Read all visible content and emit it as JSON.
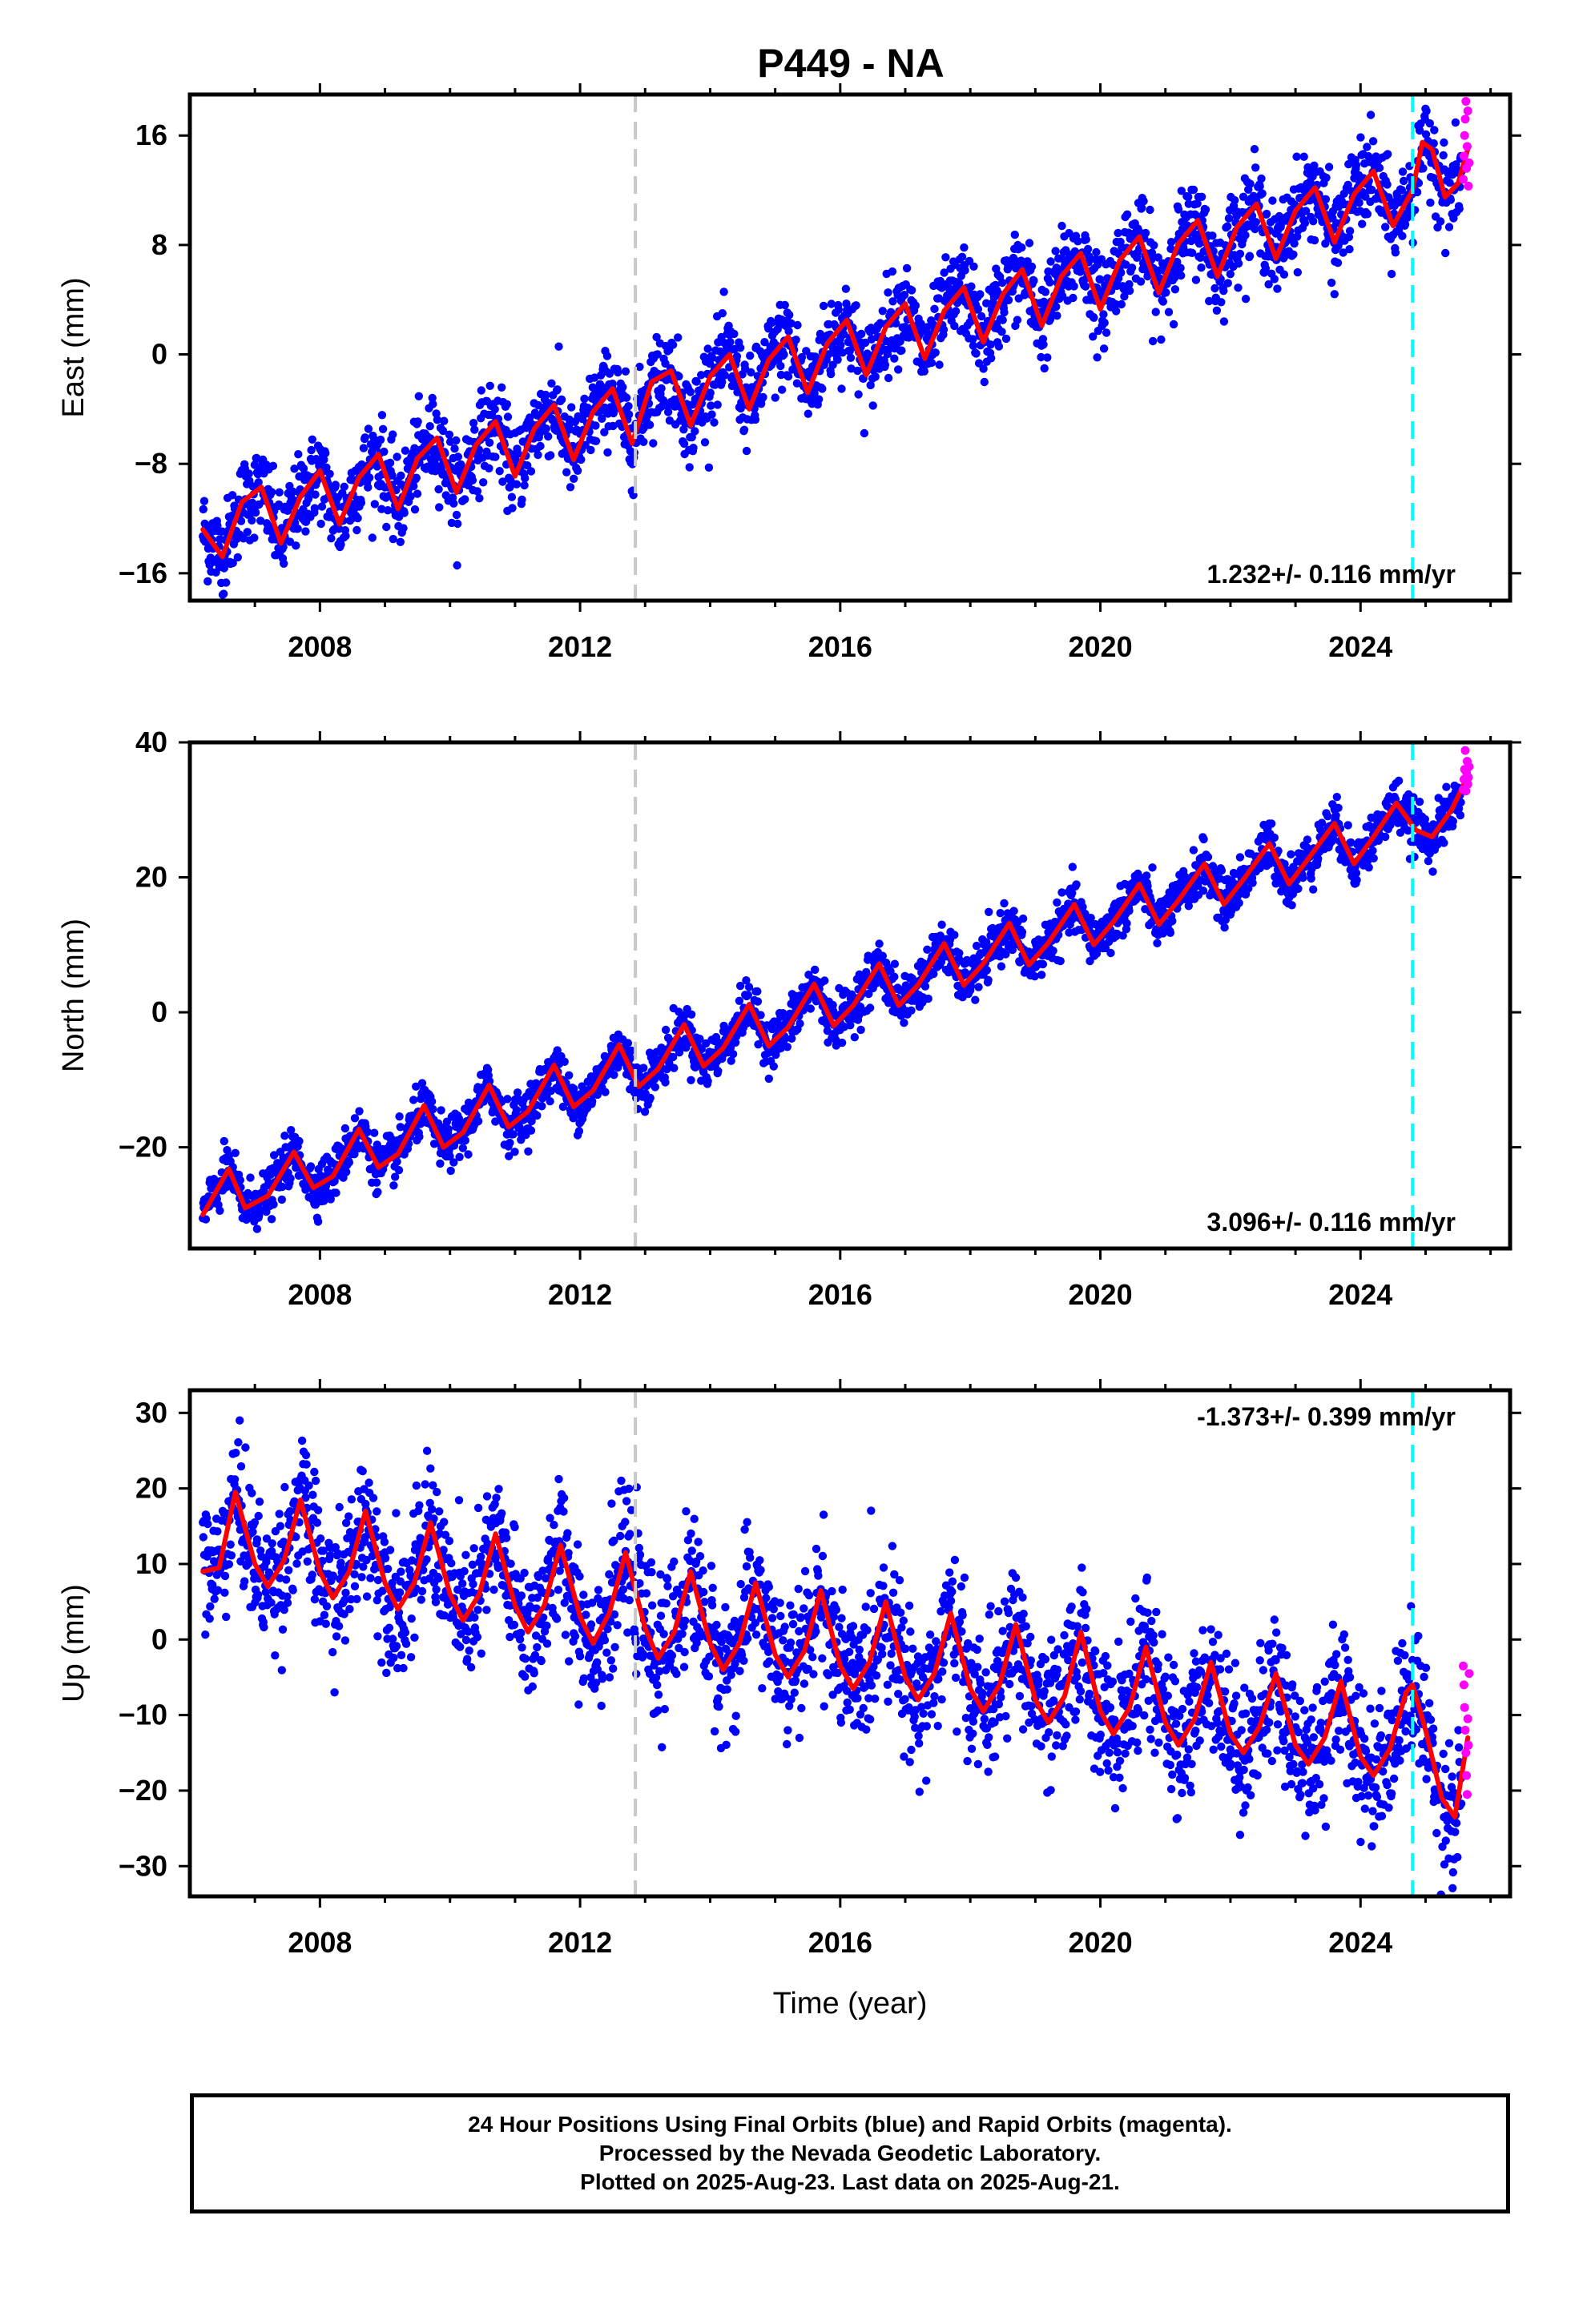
{
  "title": "P449 - NA",
  "footer": {
    "line1": "24 Hour Positions Using Final Orbits (blue) and Rapid Orbits (magenta).",
    "line2": "Processed by the Nevada Geodetic Laboratory.",
    "line3": "Plotted on 2025-Aug-23. Last data on 2025-Aug-21."
  },
  "colors": {
    "final_orbits": "#0000ff",
    "rapid_orbits": "#ff00ff",
    "model_fit": "#ff0000",
    "gray_marker": "#c8c8c8",
    "cyan_marker": "#00ffff"
  },
  "chart_data": [
    {
      "type": "scatter",
      "ylabel": "East (mm)",
      "xlabel": "",
      "xlim": [
        2006.0,
        2026.3
      ],
      "ylim": [
        -18,
        19
      ],
      "x_ticks": [
        2008,
        2012,
        2016,
        2020,
        2024
      ],
      "y_ticks": [
        -16,
        -8,
        0,
        8,
        16
      ],
      "annotation": "1.232+/- 0.116 mm/yr",
      "annotation_position": "bottom-right",
      "vertical_markers": [
        {
          "x": 2012.85,
          "color": "gray",
          "style": "dashed"
        },
        {
          "x": 2024.8,
          "color": "cyan",
          "style": "dashed"
        }
      ],
      "model": {
        "x": [
          2006.2,
          2006.5,
          2006.8,
          2007.1,
          2007.4,
          2007.7,
          2008.0,
          2008.3,
          2008.6,
          2008.9,
          2009.2,
          2009.5,
          2009.8,
          2010.1,
          2010.4,
          2010.7,
          2011.0,
          2011.3,
          2011.6,
          2011.9,
          2012.2,
          2012.5,
          2012.8,
          2013.1,
          2013.4,
          2013.7,
          2014.0,
          2014.3,
          2014.6,
          2014.9,
          2015.2,
          2015.5,
          2015.8,
          2016.1,
          2016.4,
          2016.7,
          2017.0,
          2017.3,
          2017.6,
          2017.9,
          2018.2,
          2018.5,
          2018.8,
          2019.1,
          2019.4,
          2019.7,
          2020.0,
          2020.3,
          2020.6,
          2020.9,
          2021.2,
          2021.5,
          2021.8,
          2022.1,
          2022.4,
          2022.7,
          2023.0,
          2023.3,
          2023.6,
          2023.9,
          2024.2,
          2024.5,
          2024.8,
          2024.95,
          2025.1,
          2025.3,
          2025.5,
          2025.65
        ],
        "y": [
          -12.8,
          -14.8,
          -10.8,
          -9.7,
          -13.8,
          -10.4,
          -8.5,
          -12.4,
          -9.0,
          -7.3,
          -11.3,
          -7.6,
          -6.1,
          -10.1,
          -6.6,
          -4.9,
          -8.9,
          -5.4,
          -3.7,
          -7.7,
          -4.2,
          -2.5,
          -6.5,
          -2.0,
          -1.2,
          -5.2,
          -1.6,
          0.0,
          -4.0,
          -0.4,
          1.3,
          -2.8,
          0.8,
          2.5,
          -1.5,
          2.0,
          3.7,
          -0.3,
          3.2,
          4.9,
          0.9,
          4.4,
          6.2,
          2.1,
          5.7,
          7.4,
          3.3,
          6.9,
          8.6,
          4.5,
          8.1,
          9.8,
          5.7,
          9.3,
          11.0,
          7.0,
          10.5,
          12.2,
          8.2,
          11.7,
          13.4,
          9.4,
          12.0,
          15.5,
          15.0,
          11.5,
          12.5,
          15.0
        ]
      },
      "final_orbits_trend": {
        "x_start": 2006.2,
        "x_end": 2025.55,
        "y_start": -12.3,
        "y_end": 13.3,
        "seasonal_amplitude_mm": 2.2,
        "scatter_mm": 1.6
      },
      "rapid_orbits": {
        "x": [
          2025.58,
          2025.59,
          2025.6,
          2025.61,
          2025.62,
          2025.63,
          2025.64,
          2025.65,
          2025.66,
          2025.67
        ],
        "y": [
          12.8,
          14.5,
          16.0,
          17.2,
          18.5,
          13.6,
          15.2,
          17.8,
          12.3,
          14.0
        ]
      }
    },
    {
      "type": "scatter",
      "ylabel": "North (mm)",
      "xlabel": "",
      "xlim": [
        2006.0,
        2026.3
      ],
      "ylim": [
        -35,
        40
      ],
      "x_ticks": [
        2008,
        2012,
        2016,
        2020,
        2024
      ],
      "y_ticks": [
        -20,
        0,
        20,
        40
      ],
      "annotation": "3.096+/- 0.116 mm/yr",
      "annotation_position": "bottom-right",
      "vertical_markers": [
        {
          "x": 2012.85,
          "color": "gray",
          "style": "dashed"
        },
        {
          "x": 2024.8,
          "color": "cyan",
          "style": "dashed"
        }
      ],
      "model": {
        "x": [
          2006.2,
          2006.6,
          2006.85,
          2007.2,
          2007.6,
          2007.9,
          2008.2,
          2008.6,
          2008.9,
          2009.2,
          2009.6,
          2009.9,
          2010.2,
          2010.6,
          2010.9,
          2011.2,
          2011.6,
          2011.9,
          2012.2,
          2012.6,
          2012.9,
          2013.2,
          2013.6,
          2013.9,
          2014.2,
          2014.6,
          2014.9,
          2015.2,
          2015.6,
          2015.9,
          2016.2,
          2016.6,
          2016.9,
          2017.2,
          2017.6,
          2017.9,
          2018.2,
          2018.6,
          2018.9,
          2019.2,
          2019.6,
          2019.9,
          2020.2,
          2020.6,
          2020.9,
          2021.2,
          2021.6,
          2021.9,
          2022.2,
          2022.6,
          2022.9,
          2023.2,
          2023.6,
          2023.9,
          2024.2,
          2024.55,
          2024.85,
          2025.1,
          2025.4,
          2025.65
        ],
        "y": [
          -30.0,
          -23.2,
          -29.0,
          -27.2,
          -20.7,
          -26.0,
          -24.3,
          -17.3,
          -23.0,
          -21.0,
          -13.8,
          -20.0,
          -17.8,
          -10.8,
          -17.0,
          -14.7,
          -7.8,
          -14.0,
          -11.6,
          -4.8,
          -11.0,
          -8.4,
          -1.8,
          -8.0,
          -5.3,
          1.2,
          -5.0,
          -2.2,
          4.2,
          -2.0,
          1.0,
          7.2,
          1.0,
          4.1,
          10.2,
          4.0,
          7.2,
          13.2,
          7.0,
          10.3,
          16.0,
          10.0,
          13.4,
          19.0,
          13.0,
          16.6,
          22.0,
          16.0,
          19.7,
          25.0,
          19.0,
          22.8,
          28.0,
          22.0,
          26.0,
          31.0,
          27.0,
          26.0,
          30.0,
          35.0
        ]
      },
      "final_orbits_trend": {
        "x_start": 2006.2,
        "x_end": 2025.55,
        "y_start": -28.5,
        "y_end": 31.5,
        "seasonal_amplitude_mm": 3.0,
        "scatter_mm": 1.8
      },
      "rapid_orbits": {
        "x": [
          2025.58,
          2025.59,
          2025.6,
          2025.61,
          2025.62,
          2025.63,
          2025.64,
          2025.65,
          2025.66,
          2025.67
        ],
        "y": [
          33.0,
          34.5,
          36.0,
          38.8,
          32.8,
          35.5,
          37.2,
          33.8,
          34.8,
          36.4
        ]
      }
    },
    {
      "type": "scatter",
      "ylabel": "Up (mm)",
      "xlabel": "Time (year)",
      "xlim": [
        2006.0,
        2026.3
      ],
      "ylim": [
        -34,
        33
      ],
      "x_ticks": [
        2008,
        2012,
        2016,
        2020,
        2024
      ],
      "y_ticks": [
        -30,
        -20,
        -10,
        0,
        10,
        20,
        30
      ],
      "annotation": "-1.373+/- 0.399 mm/yr",
      "annotation_position": "top-right",
      "vertical_markers": [
        {
          "x": 2012.85,
          "color": "gray",
          "style": "dashed"
        },
        {
          "x": 2024.8,
          "color": "cyan",
          "style": "dashed"
        }
      ],
      "model": {
        "x": [
          2006.2,
          2006.45,
          2006.7,
          2007.0,
          2007.2,
          2007.45,
          2007.7,
          2008.0,
          2008.2,
          2008.45,
          2008.7,
          2009.0,
          2009.2,
          2009.45,
          2009.7,
          2010.0,
          2010.2,
          2010.45,
          2010.7,
          2011.0,
          2011.2,
          2011.45,
          2011.7,
          2012.0,
          2012.2,
          2012.45,
          2012.7,
          2013.0,
          2013.2,
          2013.45,
          2013.7,
          2014.0,
          2014.2,
          2014.45,
          2014.7,
          2015.0,
          2015.2,
          2015.45,
          2015.7,
          2016.0,
          2016.2,
          2016.45,
          2016.7,
          2017.0,
          2017.2,
          2017.45,
          2017.7,
          2018.0,
          2018.2,
          2018.45,
          2018.7,
          2019.0,
          2019.2,
          2019.45,
          2019.7,
          2020.0,
          2020.2,
          2020.45,
          2020.7,
          2021.0,
          2021.2,
          2021.45,
          2021.7,
          2022.0,
          2022.2,
          2022.45,
          2022.7,
          2023.0,
          2023.2,
          2023.45,
          2023.7,
          2024.0,
          2024.2,
          2024.45,
          2024.7,
          2024.8,
          2025.0,
          2025.25,
          2025.45,
          2025.65
        ],
        "y": [
          9.0,
          9.5,
          19.5,
          10.0,
          7.0,
          10.5,
          18.5,
          9.0,
          5.5,
          9.0,
          17.0,
          7.5,
          4.0,
          7.5,
          15.5,
          6.0,
          2.5,
          6.0,
          14.0,
          4.5,
          1.0,
          4.5,
          12.5,
          3.0,
          -0.5,
          3.5,
          11.5,
          1.5,
          -2.5,
          1.0,
          9.0,
          -0.5,
          -4.0,
          -0.5,
          7.5,
          -2.0,
          -5.0,
          -1.5,
          6.5,
          -3.5,
          -6.5,
          -3.0,
          5.0,
          -5.0,
          -8.0,
          -4.5,
          3.5,
          -6.5,
          -9.5,
          -6.0,
          2.0,
          -8.0,
          -11.0,
          -7.5,
          1.0,
          -9.5,
          -12.5,
          -9.0,
          -1.0,
          -11.0,
          -14.0,
          -10.5,
          -3.0,
          -12.5,
          -15.0,
          -11.5,
          -4.5,
          -14.0,
          -16.5,
          -13.0,
          -5.5,
          -15.5,
          -18.0,
          -14.5,
          -7.0,
          -6.0,
          -12.0,
          -21.0,
          -23.5,
          -13.0
        ]
      },
      "final_orbits_trend": {
        "x_start": 2006.2,
        "x_end": 2025.55,
        "y_start": 12.0,
        "y_end": -16.0,
        "seasonal_amplitude_mm": 5.5,
        "scatter_mm": 4.5
      },
      "rapid_orbits": {
        "x": [
          2025.58,
          2025.59,
          2025.6,
          2025.61,
          2025.62,
          2025.63,
          2025.64,
          2025.65,
          2025.66,
          2025.67
        ],
        "y": [
          -3.5,
          -6.0,
          -9.0,
          -12.0,
          -15.0,
          -18.0,
          -20.5,
          -10.5,
          -14.0,
          -4.5
        ]
      }
    }
  ]
}
